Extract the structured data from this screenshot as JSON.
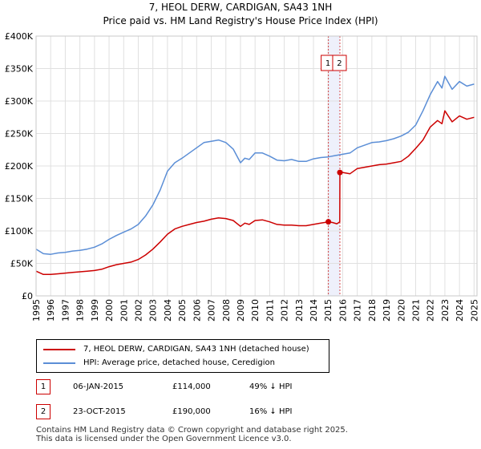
{
  "title": "7, HEOL DERW, CARDIGAN, SA43 1NH",
  "subtitle": "Price paid vs. HM Land Registry's House Price Index (HPI)",
  "colors": {
    "property": "#cc0000",
    "hpi": "#5b8ed6",
    "grid": "#e0e0e0",
    "band": "#eef0fb",
    "marker_line": "#cc0000"
  },
  "chart_data": {
    "type": "line",
    "title": "7, HEOL DERW, CARDIGAN, SA43 1NH",
    "subtitle": "Price paid vs. HM Land Registry's House Price Index (HPI)",
    "xlabel": "",
    "ylabel": "",
    "xlim": [
      1995,
      2025.2
    ],
    "ylim": [
      0,
      400000
    ],
    "grid": true,
    "y_ticks": [
      {
        "value": 0,
        "label": "£0"
      },
      {
        "value": 50000,
        "label": "£50K"
      },
      {
        "value": 100000,
        "label": "£100K"
      },
      {
        "value": 150000,
        "label": "£150K"
      },
      {
        "value": 200000,
        "label": "£200K"
      },
      {
        "value": 250000,
        "label": "£250K"
      },
      {
        "value": 300000,
        "label": "£300K"
      },
      {
        "value": 350000,
        "label": "£350K"
      },
      {
        "value": 400000,
        "label": "£400K"
      }
    ],
    "x_ticks": [
      "1995",
      "1996",
      "1997",
      "1998",
      "1999",
      "2000",
      "2001",
      "2002",
      "2003",
      "2004",
      "2005",
      "2006",
      "2007",
      "2008",
      "2009",
      "2010",
      "2011",
      "2012",
      "2013",
      "2014",
      "2015",
      "2016",
      "2017",
      "2018",
      "2019",
      "2020",
      "2021",
      "2022",
      "2023",
      "2024",
      "2025"
    ],
    "series": [
      {
        "name": "7, HEOL DERW, CARDIGAN, SA43 1NH (detached house)",
        "color": "#cc0000",
        "x": [
          1995.0,
          1995.5,
          1996.0,
          1996.5,
          1997.0,
          1997.5,
          1998.0,
          1998.5,
          1999.0,
          1999.5,
          2000.0,
          2000.5,
          2001.0,
          2001.5,
          2002.0,
          2002.5,
          2003.0,
          2003.5,
          2004.0,
          2004.5,
          2005.0,
          2005.5,
          2006.0,
          2006.5,
          2007.0,
          2007.5,
          2008.0,
          2008.5,
          2009.0,
          2009.3,
          2009.6,
          2010.0,
          2010.5,
          2011.0,
          2011.5,
          2012.0,
          2012.5,
          2013.0,
          2013.5,
          2014.0,
          2014.5,
          2015.02,
          2015.3,
          2015.6,
          2015.8,
          2015.81,
          2016.0,
          2016.5,
          2017.0,
          2017.5,
          2018.0,
          2018.5,
          2019.0,
          2019.5,
          2020.0,
          2020.5,
          2021.0,
          2021.5,
          2022.0,
          2022.5,
          2022.8,
          2023.0,
          2023.5,
          2024.0,
          2024.5,
          2025.0
        ],
        "y": [
          38000,
          33000,
          33000,
          34000,
          35000,
          36000,
          37000,
          38000,
          39000,
          41000,
          45000,
          48000,
          50000,
          52000,
          56000,
          63000,
          72000,
          83000,
          95000,
          103000,
          107000,
          110000,
          113000,
          115000,
          118000,
          120000,
          119000,
          116000,
          107000,
          112000,
          110000,
          116000,
          117000,
          114000,
          110000,
          109000,
          109000,
          108000,
          108000,
          110000,
          112000,
          114000,
          113000,
          111000,
          114000,
          190000,
          190000,
          188000,
          196000,
          198000,
          200000,
          202000,
          203000,
          205000,
          207000,
          215000,
          227000,
          240000,
          260000,
          270000,
          265000,
          285000,
          268000,
          277000,
          272000,
          275000
        ]
      },
      {
        "name": "HPI: Average price, detached house, Ceredigion",
        "color": "#5b8ed6",
        "x": [
          1995.0,
          1995.5,
          1996.0,
          1996.5,
          1997.0,
          1997.5,
          1998.0,
          1998.5,
          1999.0,
          1999.5,
          2000.0,
          2000.5,
          2001.0,
          2001.5,
          2002.0,
          2002.5,
          2003.0,
          2003.5,
          2004.0,
          2004.5,
          2005.0,
          2005.5,
          2006.0,
          2006.5,
          2007.0,
          2007.5,
          2008.0,
          2008.5,
          2009.0,
          2009.3,
          2009.6,
          2010.0,
          2010.5,
          2011.0,
          2011.5,
          2012.0,
          2012.5,
          2013.0,
          2013.5,
          2014.0,
          2014.5,
          2015.0,
          2015.5,
          2016.0,
          2016.5,
          2017.0,
          2017.5,
          2018.0,
          2018.5,
          2019.0,
          2019.5,
          2020.0,
          2020.5,
          2021.0,
          2021.5,
          2022.0,
          2022.5,
          2022.8,
          2023.0,
          2023.5,
          2024.0,
          2024.5,
          2025.0
        ],
        "y": [
          72000,
          65000,
          64000,
          66000,
          67000,
          69000,
          70000,
          72000,
          75000,
          80000,
          87000,
          93000,
          98000,
          103000,
          110000,
          123000,
          140000,
          163000,
          192000,
          205000,
          212000,
          220000,
          228000,
          236000,
          238000,
          240000,
          236000,
          226000,
          205000,
          212000,
          210000,
          220000,
          220000,
          215000,
          209000,
          208000,
          210000,
          207000,
          207000,
          211000,
          213000,
          214000,
          216000,
          218000,
          220000,
          228000,
          232000,
          236000,
          237000,
          239000,
          242000,
          246000,
          252000,
          263000,
          285000,
          310000,
          330000,
          320000,
          338000,
          318000,
          330000,
          323000,
          326000
        ]
      }
    ],
    "annotations": [
      {
        "label": "1",
        "x": 2015.02,
        "y": 114000
      },
      {
        "label": "2",
        "x": 2015.81,
        "y": 190000
      }
    ]
  },
  "legend": {
    "property_label": "7, HEOL DERW, CARDIGAN, SA43 1NH (detached house)",
    "hpi_label": "HPI: Average price, detached house, Ceredigion"
  },
  "transactions": [
    {
      "badge": "1",
      "date": "06-JAN-2015",
      "price": "£114,000",
      "hpi": "49% ↓ HPI"
    },
    {
      "badge": "2",
      "date": "23-OCT-2015",
      "price": "£190,000",
      "hpi": "16% ↓ HPI"
    }
  ],
  "footer": {
    "line1": "Contains HM Land Registry data © Crown copyright and database right 2025.",
    "line2": "This data is licensed under the Open Government Licence v3.0."
  }
}
